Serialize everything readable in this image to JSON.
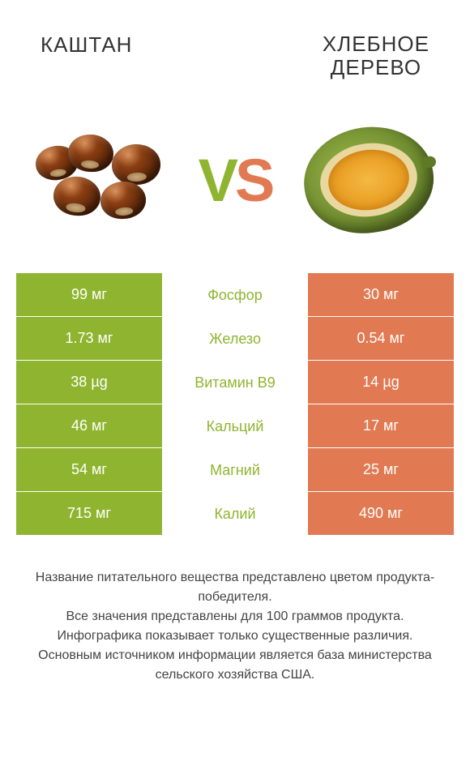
{
  "header": {
    "left": "КАШТАН",
    "right_line1": "ХЛЕБНОЕ",
    "right_line2": "ДЕРЕВО"
  },
  "vs": {
    "v": "V",
    "s": "S"
  },
  "colors": {
    "left": "#8fb530",
    "right": "#e17a52",
    "mid_text_left": "#8fb530",
    "mid_text_right": "#e17a52"
  },
  "table": {
    "rows": [
      {
        "left": "99 мг",
        "mid": "Фосфор",
        "right": "30 мг",
        "winner": "left"
      },
      {
        "left": "1.73 мг",
        "mid": "Железо",
        "right": "0.54 мг",
        "winner": "left"
      },
      {
        "left": "38 µg",
        "mid": "Витамин B9",
        "right": "14 µg",
        "winner": "left"
      },
      {
        "left": "46 мг",
        "mid": "Кальций",
        "right": "17 мг",
        "winner": "left"
      },
      {
        "left": "54 мг",
        "mid": "Магний",
        "right": "25 мг",
        "winner": "left"
      },
      {
        "left": "715 мг",
        "mid": "Калий",
        "right": "490 мг",
        "winner": "left"
      }
    ]
  },
  "footer": {
    "l1": "Название питательного вещества представлено цветом продукта-победителя.",
    "l2": "Все значения представлены для 100 граммов продукта.",
    "l3": "Инфографика показывает только существенные различия.",
    "l4": "Основным источником информации является база министерства сельского хозяйства США."
  }
}
